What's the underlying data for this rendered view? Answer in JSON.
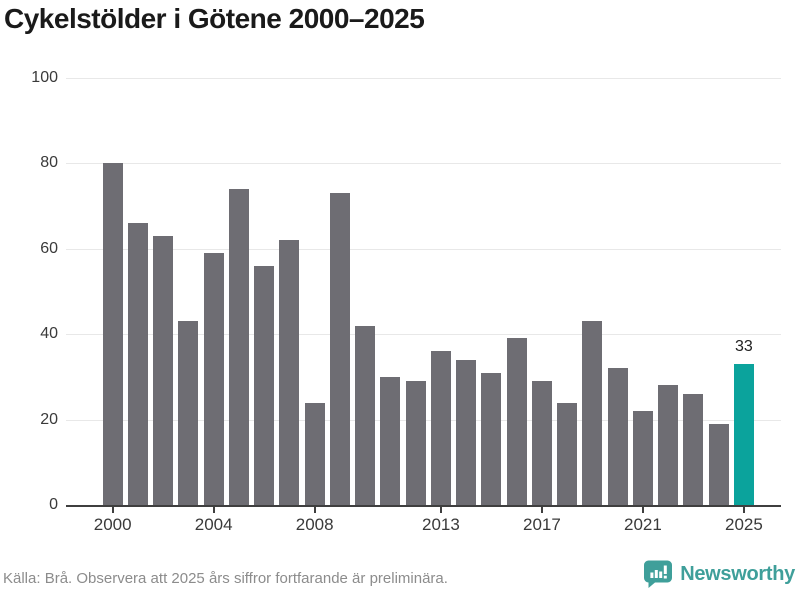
{
  "title": "Cykelstölder i Götene 2000–2025",
  "chart_data": {
    "type": "bar",
    "title": "Cykelstölder i Götene 2000–2025",
    "categories": [
      "2000",
      "2001",
      "2002",
      "2003",
      "2004",
      "2005",
      "2006",
      "2007",
      "2008",
      "2009",
      "2010",
      "2011",
      "2012",
      "2013",
      "2014",
      "2015",
      "2016",
      "2017",
      "2018",
      "2019",
      "2020",
      "2021",
      "2022",
      "2023",
      "2024",
      "2025"
    ],
    "values": [
      80,
      66,
      63,
      43,
      59,
      74,
      56,
      62,
      24,
      73,
      42,
      30,
      29,
      36,
      34,
      31,
      39,
      29,
      24,
      43,
      32,
      22,
      28,
      26,
      19,
      33
    ],
    "xlabel": "",
    "ylabel": "",
    "ylim": [
      0,
      100
    ],
    "yticks": [
      0,
      20,
      40,
      60,
      80,
      100
    ],
    "xtick_labels": [
      "2000",
      "2004",
      "2008",
      "2013",
      "2017",
      "2021",
      "2025"
    ],
    "grid": true,
    "legend": false,
    "bar_color": "#6e6d73",
    "highlight": {
      "category": "2025",
      "value": 33,
      "label": "33",
      "color": "#0ba39c"
    }
  },
  "footer": {
    "source": "Källa: Brå. Observera att 2025 års siffror fortfarande är preliminära.",
    "brand": {
      "name": "Newsworthy",
      "color": "#3f9f9a",
      "icon": "speech-bubble-bar-chart"
    }
  }
}
